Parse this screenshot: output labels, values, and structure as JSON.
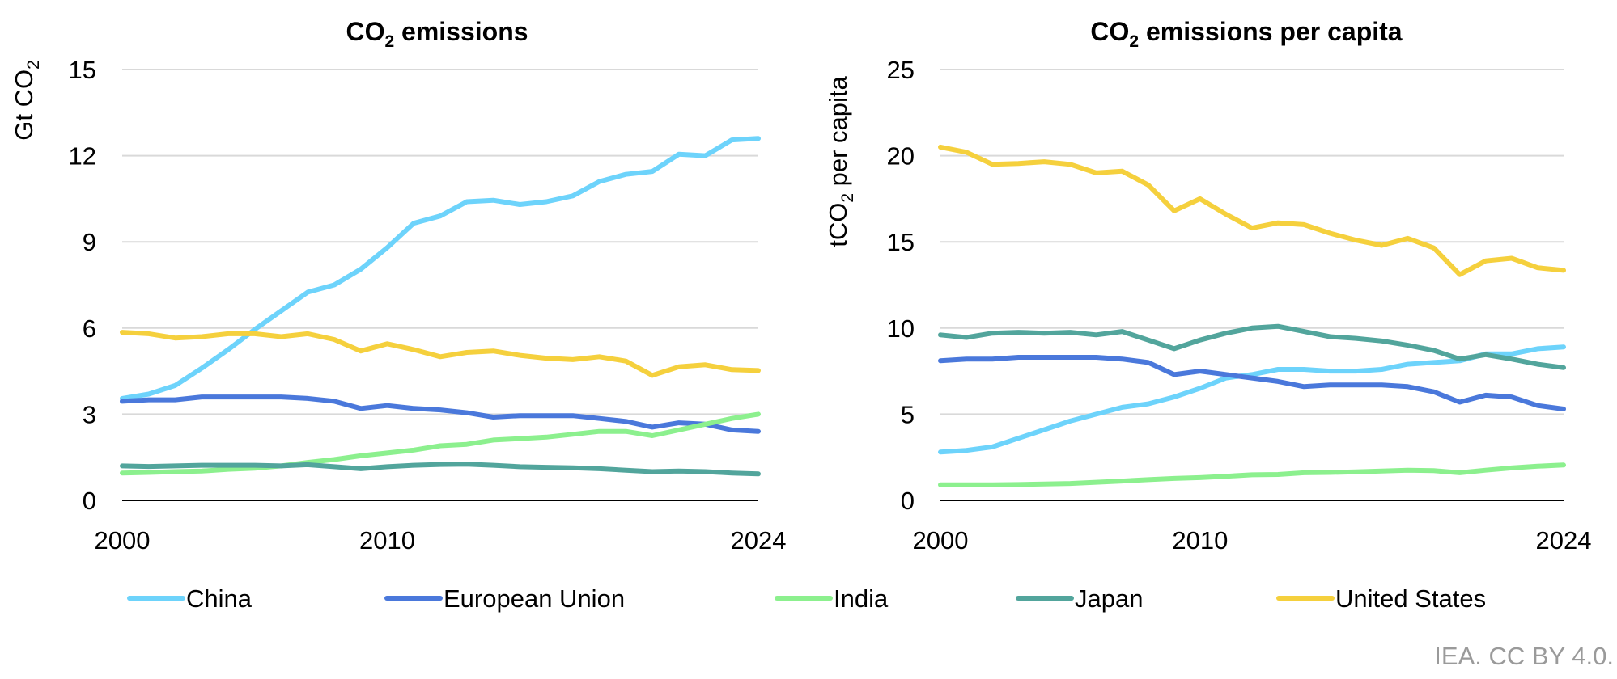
{
  "chart_data": [
    {
      "type": "line",
      "title_main": "CO",
      "title_sub": "2",
      "title_rest": " emissions",
      "ylabel_main": "Gt CO",
      "ylabel_sub": "2",
      "ylabel_rest": "",
      "x_ticks": [
        "2000",
        "2010",
        "2024"
      ],
      "x_tick_values": [
        2000,
        2010,
        2024
      ],
      "xlim": [
        2000,
        2024
      ],
      "ylim": [
        0,
        15
      ],
      "y_ticks": [
        0,
        3,
        6,
        9,
        12,
        15
      ],
      "y_tick_labels": [
        "0",
        "3",
        "6",
        "9",
        "12",
        "15"
      ],
      "x": [
        2000,
        2001,
        2002,
        2003,
        2004,
        2005,
        2006,
        2007,
        2008,
        2009,
        2010,
        2011,
        2012,
        2013,
        2014,
        2015,
        2016,
        2017,
        2018,
        2019,
        2020,
        2021,
        2022,
        2023,
        2024
      ],
      "series": [
        {
          "name": "China",
          "color": "#6dd3fb",
          "values": [
            3.55,
            3.7,
            4.0,
            4.6,
            5.25,
            5.95,
            6.6,
            7.25,
            7.5,
            8.05,
            8.8,
            9.65,
            9.9,
            10.4,
            10.45,
            10.3,
            10.4,
            10.6,
            11.1,
            11.35,
            11.45,
            12.05,
            12.0,
            12.55,
            12.6
          ]
        },
        {
          "name": "European Union",
          "color": "#4a78db",
          "values": [
            3.45,
            3.5,
            3.5,
            3.6,
            3.6,
            3.6,
            3.6,
            3.55,
            3.45,
            3.2,
            3.3,
            3.2,
            3.15,
            3.05,
            2.9,
            2.95,
            2.95,
            2.95,
            2.85,
            2.75,
            2.55,
            2.7,
            2.65,
            2.45,
            2.4
          ]
        },
        {
          "name": "India",
          "color": "#8cf08e",
          "values": [
            0.95,
            0.97,
            1.0,
            1.02,
            1.08,
            1.12,
            1.2,
            1.32,
            1.42,
            1.55,
            1.65,
            1.75,
            1.9,
            1.95,
            2.1,
            2.15,
            2.2,
            2.3,
            2.4,
            2.4,
            2.25,
            2.45,
            2.65,
            2.85,
            3.0
          ]
        },
        {
          "name": "Japan",
          "color": "#52a59c",
          "values": [
            1.2,
            1.18,
            1.2,
            1.22,
            1.22,
            1.22,
            1.2,
            1.24,
            1.17,
            1.1,
            1.17,
            1.22,
            1.25,
            1.26,
            1.22,
            1.17,
            1.15,
            1.13,
            1.1,
            1.05,
            1.0,
            1.02,
            1.0,
            0.95,
            0.92
          ]
        },
        {
          "name": "United States",
          "color": "#f5d03d",
          "values": [
            5.85,
            5.8,
            5.65,
            5.7,
            5.8,
            5.8,
            5.7,
            5.8,
            5.6,
            5.2,
            5.45,
            5.25,
            5.0,
            5.15,
            5.2,
            5.05,
            4.95,
            4.9,
            5.0,
            4.85,
            4.35,
            4.65,
            4.72,
            4.55,
            4.52
          ]
        }
      ]
    },
    {
      "type": "line",
      "title_main": "CO",
      "title_sub": "2",
      "title_rest": " emissions per capita",
      "ylabel_main": "tCO",
      "ylabel_sub": "2",
      "ylabel_rest": " per capita",
      "x_ticks": [
        "2000",
        "2010",
        "2024"
      ],
      "x_tick_values": [
        2000,
        2010,
        2024
      ],
      "xlim": [
        2000,
        2024
      ],
      "ylim": [
        0,
        25
      ],
      "y_ticks": [
        0,
        5,
        10,
        15,
        20,
        25
      ],
      "y_tick_labels": [
        "0",
        "5",
        "10",
        "15",
        "20",
        "25"
      ],
      "x": [
        2000,
        2001,
        2002,
        2003,
        2004,
        2005,
        2006,
        2007,
        2008,
        2009,
        2010,
        2011,
        2012,
        2013,
        2014,
        2015,
        2016,
        2017,
        2018,
        2019,
        2020,
        2021,
        2022,
        2023,
        2024
      ],
      "series": [
        {
          "name": "China",
          "color": "#6dd3fb",
          "values": [
            2.8,
            2.9,
            3.1,
            3.6,
            4.1,
            4.6,
            5.0,
            5.4,
            5.6,
            6.0,
            6.5,
            7.1,
            7.3,
            7.6,
            7.6,
            7.5,
            7.5,
            7.6,
            7.9,
            8.0,
            8.1,
            8.5,
            8.5,
            8.8,
            8.9
          ]
        },
        {
          "name": "European Union",
          "color": "#4a78db",
          "values": [
            8.1,
            8.2,
            8.2,
            8.3,
            8.3,
            8.3,
            8.3,
            8.2,
            8.0,
            7.3,
            7.5,
            7.3,
            7.1,
            6.9,
            6.6,
            6.7,
            6.7,
            6.7,
            6.6,
            6.3,
            5.7,
            6.1,
            6.0,
            5.5,
            5.3
          ]
        },
        {
          "name": "India",
          "color": "#8cf08e",
          "values": [
            0.9,
            0.9,
            0.9,
            0.92,
            0.95,
            0.98,
            1.05,
            1.12,
            1.2,
            1.27,
            1.32,
            1.4,
            1.48,
            1.5,
            1.6,
            1.62,
            1.65,
            1.7,
            1.75,
            1.72,
            1.6,
            1.75,
            1.88,
            1.98,
            2.05
          ]
        },
        {
          "name": "Japan",
          "color": "#52a59c",
          "values": [
            9.6,
            9.45,
            9.7,
            9.75,
            9.7,
            9.75,
            9.6,
            9.8,
            9.3,
            8.8,
            9.3,
            9.7,
            10.0,
            10.1,
            9.8,
            9.5,
            9.4,
            9.25,
            9.0,
            8.7,
            8.2,
            8.45,
            8.2,
            7.9,
            7.7
          ]
        },
        {
          "name": "United States",
          "color": "#f5d03d",
          "values": [
            20.5,
            20.2,
            19.5,
            19.55,
            19.65,
            19.5,
            19.0,
            19.1,
            18.3,
            16.8,
            17.5,
            16.6,
            15.8,
            16.1,
            16.0,
            15.5,
            15.1,
            14.8,
            15.2,
            14.65,
            13.1,
            13.9,
            14.05,
            13.5,
            13.35
          ]
        }
      ]
    }
  ],
  "legend": [
    {
      "name": "China",
      "color": "#6dd3fb"
    },
    {
      "name": "European Union",
      "color": "#4a78db"
    },
    {
      "name": "India",
      "color": "#8cf08e"
    },
    {
      "name": "Japan",
      "color": "#52a59c"
    },
    {
      "name": "United States",
      "color": "#f5d03d"
    }
  ],
  "credit": "IEA. CC BY 4.0."
}
